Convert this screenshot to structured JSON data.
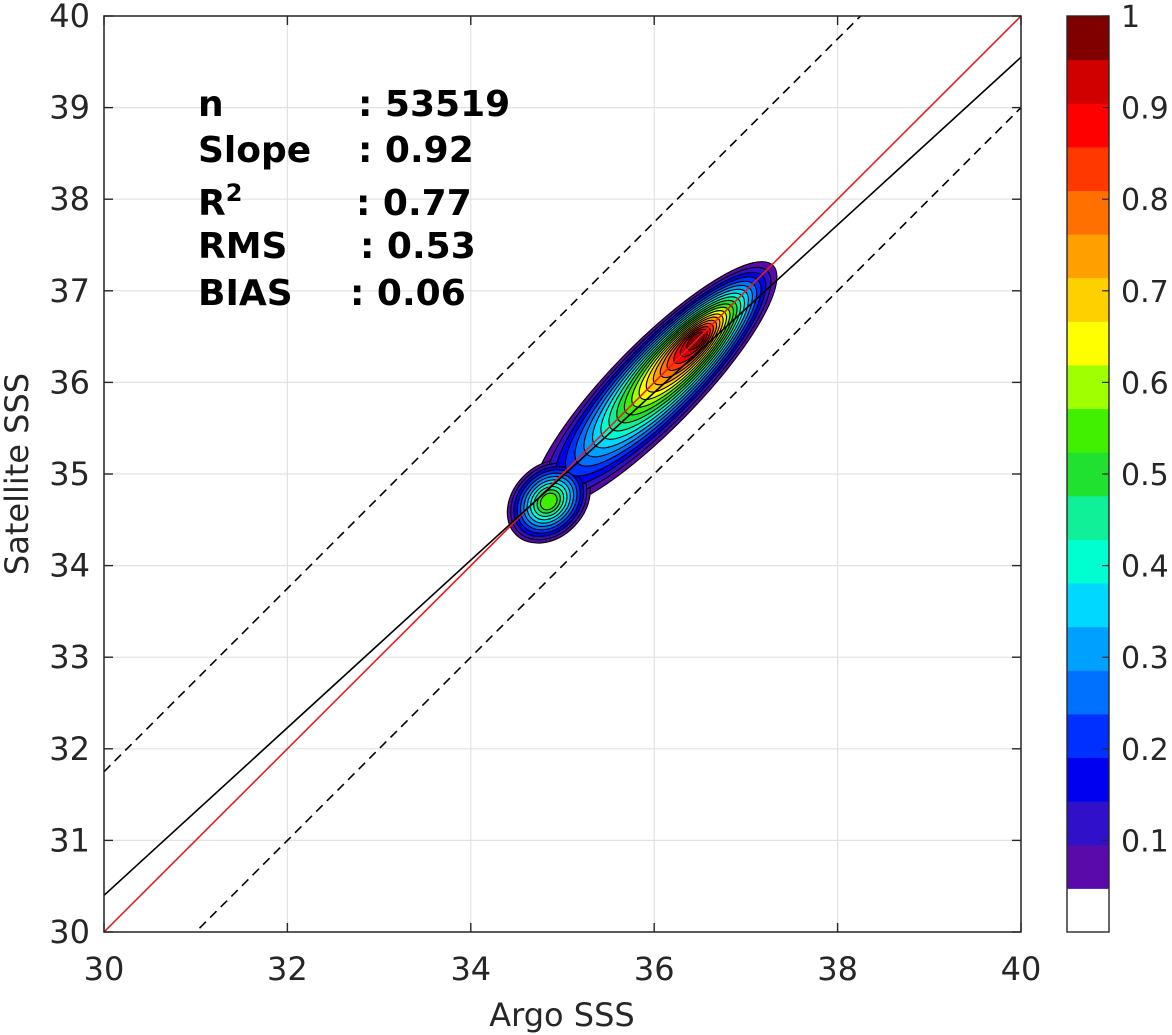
{
  "chart_data": {
    "type": "contour",
    "xlabel": "Argo SSS",
    "ylabel": "Satellite SSS",
    "xlim": [
      30,
      40
    ],
    "ylim": [
      30,
      40
    ],
    "xticks": [
      "30",
      "32",
      "34",
      "36",
      "38",
      "40"
    ],
    "yticks": [
      "30",
      "31",
      "32",
      "33",
      "34",
      "35",
      "36",
      "37",
      "38",
      "39",
      "40"
    ],
    "grid": true,
    "lines": [
      {
        "name": "one-to-one",
        "color": "#e02020",
        "style": "solid",
        "slope": 1.0,
        "intercept": 0.0
      },
      {
        "name": "regression",
        "color": "#000000",
        "style": "solid",
        "slope": 0.915,
        "intercept": 2.95
      },
      {
        "name": "upper-bound",
        "color": "#000000",
        "style": "dashed",
        "slope": 1.0,
        "intercept": 1.75
      },
      {
        "name": "lower-bound",
        "color": "#000000",
        "style": "dashed",
        "slope": 1.0,
        "intercept": -1.0
      }
    ],
    "density_peaks": [
      {
        "x": 36.45,
        "y": 36.45,
        "value": 1.0
      },
      {
        "x": 34.85,
        "y": 34.7,
        "value": 0.55
      }
    ],
    "contour_levels": [
      0.05,
      0.1,
      0.15,
      0.2,
      0.25,
      0.3,
      0.35,
      0.4,
      0.45,
      0.5,
      0.55,
      0.6,
      0.65,
      0.7,
      0.75,
      0.8,
      0.85,
      0.9,
      0.95,
      1.0
    ],
    "stats": [
      {
        "label": "n",
        "value": ": 53519"
      },
      {
        "label": "Slope",
        "value": ": 0.92"
      },
      {
        "label": "R",
        "sup": "2",
        "value": ": 0.77"
      },
      {
        "label": "RMS",
        "value": ": 0.53"
      },
      {
        "label": "BIAS",
        "value": ": 0.06"
      }
    ],
    "colorbar": {
      "range": [
        0,
        1
      ],
      "ticks": [
        "0.1",
        "0.2",
        "0.3",
        "0.4",
        "0.5",
        "0.6",
        "0.7",
        "0.8",
        "0.9",
        "1"
      ],
      "tick_values": [
        0.1,
        0.2,
        0.3,
        0.4,
        0.5,
        0.6,
        0.7,
        0.8,
        0.9,
        1.0
      ],
      "colors": [
        "#ffffff",
        "#5a0aa8",
        "#3010c8",
        "#0000f0",
        "#0030ff",
        "#0070ff",
        "#00a0ff",
        "#00d8ff",
        "#00ffd0",
        "#10f098",
        "#20e030",
        "#40f000",
        "#a0ff00",
        "#ffff00",
        "#ffd000",
        "#ffa000",
        "#ff7000",
        "#ff3800",
        "#ff0000",
        "#d00000",
        "#800000"
      ]
    }
  }
}
